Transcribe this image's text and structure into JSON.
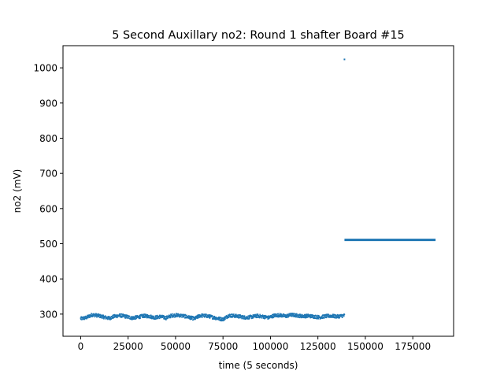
{
  "chart_data": {
    "type": "scatter",
    "title": "5 Second Auxillary no2: Round 1 shafter Board #15",
    "xlabel": "time (5 seconds)",
    "ylabel": "no2 (mV)",
    "xlim": [
      -9300,
      196500
    ],
    "ylim": [
      237,
      1063
    ],
    "xticks": [
      0,
      25000,
      50000,
      75000,
      100000,
      125000,
      150000,
      175000
    ],
    "yticks": [
      300,
      400,
      500,
      600,
      700,
      800,
      900,
      1000
    ],
    "grid": false,
    "legend": "none",
    "series": [
      {
        "color": "#1f77b4",
        "segments": [
          {
            "x_start": 0,
            "x_end": 139000,
            "approx_mean": 294,
            "approx_min": 278,
            "approx_max": 305,
            "profile": [
              [
                0,
                287
              ],
              [
                3000,
                290
              ],
              [
                6000,
                298
              ],
              [
                9000,
                296
              ],
              [
                12000,
                292
              ],
              [
                15000,
                288
              ],
              [
                18000,
                294
              ],
              [
                21000,
                296
              ],
              [
                24000,
                293
              ],
              [
                27000,
                289
              ],
              [
                30000,
                291
              ],
              [
                33000,
                295
              ],
              [
                36000,
                294
              ],
              [
                39000,
                290
              ],
              [
                42000,
                293
              ],
              [
                45000,
                289
              ],
              [
                48000,
                296
              ],
              [
                51000,
                297
              ],
              [
                54000,
                295
              ],
              [
                57000,
                291
              ],
              [
                60000,
                287
              ],
              [
                63000,
                296
              ],
              [
                66000,
                295
              ],
              [
                69000,
                292
              ],
              [
                72000,
                288
              ],
              [
                75000,
                285
              ],
              [
                78000,
                296
              ],
              [
                81000,
                295
              ],
              [
                84000,
                293
              ],
              [
                87000,
                290
              ],
              [
                90000,
                292
              ],
              [
                93000,
                295
              ],
              [
                96000,
                293
              ],
              [
                99000,
                290
              ],
              [
                102000,
                296
              ],
              [
                105000,
                297
              ],
              [
                108000,
                294
              ],
              [
                111000,
                298
              ],
              [
                114000,
                296
              ],
              [
                117000,
                294
              ],
              [
                120000,
                295
              ],
              [
                123000,
                293
              ],
              [
                126000,
                291
              ],
              [
                129000,
                294
              ],
              [
                132000,
                295
              ],
              [
                135000,
                293
              ],
              [
                139000,
                296
              ]
            ]
          },
          {
            "x_start": 139000,
            "x_end": 187000,
            "value": 511
          }
        ],
        "outliers": [
          {
            "x": 139000,
            "y": 1024
          }
        ]
      }
    ]
  }
}
